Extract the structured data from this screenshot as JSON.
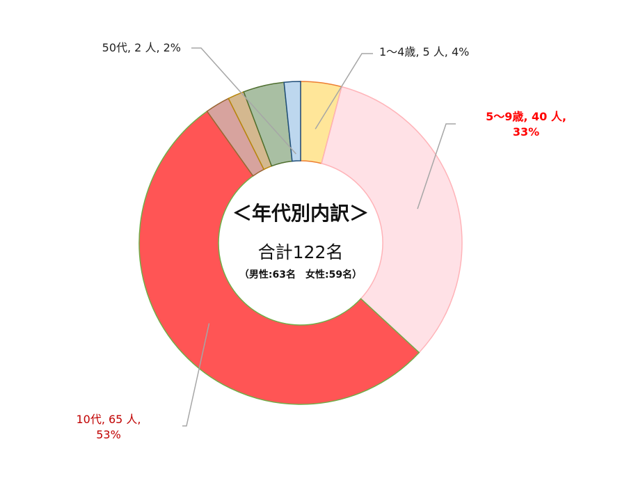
{
  "chart_data": {
    "type": "pie",
    "variant": "donut",
    "center": {
      "title": "＜年代別内訳＞",
      "total": "合計122名",
      "breakdown": "（男性:63名　女性:59名）"
    },
    "slices": [
      {
        "label": "1～4歳, 5 人, 4%",
        "value": 5,
        "color": "#FFE699",
        "stroke": "#ED7D31",
        "label_color": "#222222",
        "label_bold": false
      },
      {
        "label": "5～9歳, 40 人, 33%",
        "value": 40,
        "color": "#FFE1E6",
        "stroke": "#FFB3B8",
        "label_color": "#FF0000",
        "label_bold": true
      },
      {
        "label": "10代, 65 人, 53%",
        "value": 65,
        "color": "#FF5555",
        "stroke": "#70AD47",
        "label_color": "#C00000",
        "label_bold": false
      },
      {
        "label": "",
        "value": 3,
        "color": "#D7A39E",
        "stroke": "#996633",
        "label_color": "#222222",
        "label_bold": false
      },
      {
        "label": "",
        "value": 2,
        "color": "#D4B88F",
        "stroke": "#B8860B",
        "label_color": "#222222",
        "label_bold": false
      },
      {
        "label": "",
        "value": 5,
        "color": "#A9BFA3",
        "stroke": "#4E6E2E",
        "label_color": "#222222",
        "label_bold": false
      },
      {
        "label": "50代, 2 人, 2%",
        "value": 2,
        "color": "#BDD7EE",
        "stroke": "#1F4E79",
        "label_color": "#222222",
        "label_bold": false
      }
    ]
  }
}
